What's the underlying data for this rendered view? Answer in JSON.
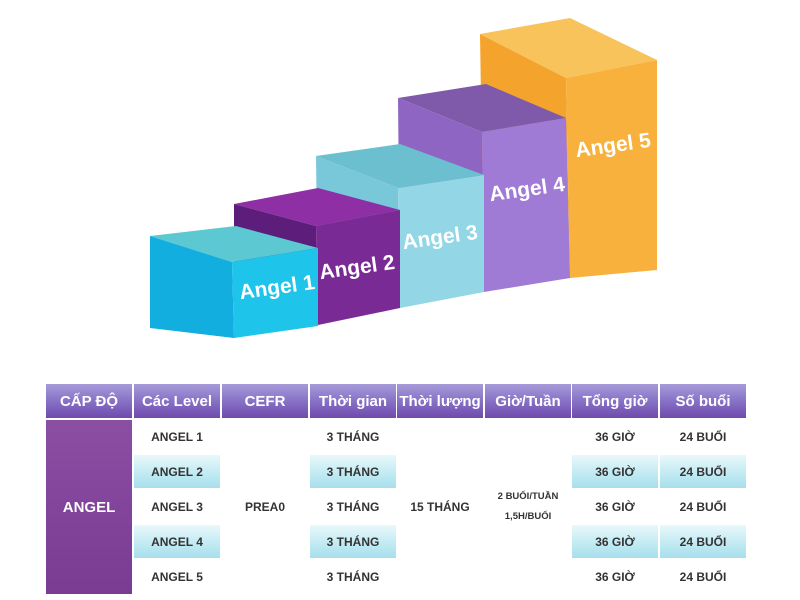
{
  "stairs": {
    "blocks": [
      {
        "label": "Angel 1",
        "color": "#1ec4ea"
      },
      {
        "label": "Angel 2",
        "color": "#7a2a94"
      },
      {
        "label": "Angel 3",
        "color": "#8ad3e4"
      },
      {
        "label": "Angel 4",
        "color": "#9f79d4"
      },
      {
        "label": "Angel 5",
        "color": "#f7b13c"
      }
    ]
  },
  "table": {
    "headers": [
      "CẤP ĐỘ",
      "Các Level",
      "CEFR",
      "Thời gian",
      "Thời lượng",
      "Giờ/Tuần",
      "Tổng giờ",
      "Số buổi"
    ],
    "level_group": "ANGEL",
    "cefr": "PREA0",
    "duration": "15 THÁNG",
    "hours_per_week": {
      "line1": "2 BUỔI/TUẦN",
      "line2": "1,5H/BUỔI"
    },
    "rows": [
      {
        "level": "ANGEL 1",
        "time": "3 THÁNG",
        "total_hours": "36 GIỜ",
        "sessions": "24 BUỔI"
      },
      {
        "level": "ANGEL 2",
        "time": "3 THÁNG",
        "total_hours": "36 GIỜ",
        "sessions": "24 BUỔI"
      },
      {
        "level": "ANGEL 3",
        "time": "3 THÁNG",
        "total_hours": "36 GIỜ",
        "sessions": "24 BUỔI"
      },
      {
        "level": "ANGEL 4",
        "time": "3 THÁNG",
        "total_hours": "36 GIỜ",
        "sessions": "24 BUỔI"
      },
      {
        "level": "ANGEL 5",
        "time": "3 THÁNG",
        "total_hours": "36 GIỜ",
        "sessions": "24 BUỔI"
      }
    ]
  }
}
